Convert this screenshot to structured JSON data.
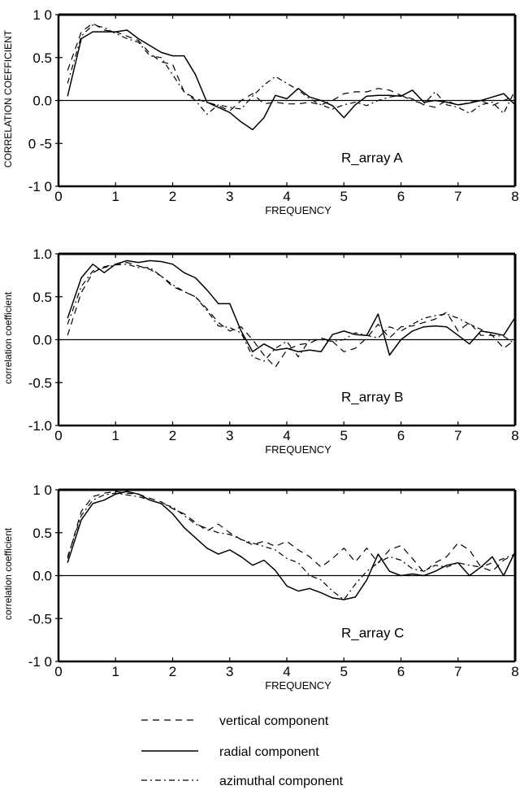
{
  "chart_data": [
    {
      "type": "line",
      "panel_label": "R_array A",
      "xlabel": "FREQUENCY",
      "ylabel": "CORRELATION COEFFICIENT",
      "xlim": [
        0,
        8
      ],
      "ylim": [
        -1,
        1
      ],
      "x_ticks": [
        0,
        1,
        2,
        3,
        4,
        5,
        6,
        7,
        8
      ],
      "x_tick_labels": [
        "0",
        "1",
        "2",
        "3",
        "4",
        "5",
        "6",
        "7",
        "8"
      ],
      "y_ticks": [
        1,
        0.5,
        0,
        -0.5,
        -1
      ],
      "y_tick_labels": [
        "1 0",
        "0.5",
        "0.0",
        "0 -5",
        "-1 0"
      ],
      "zero_line": true,
      "grid": false,
      "series": [
        {
          "name": "vertical component",
          "style": "dashed",
          "x": [
            0.16,
            0.4,
            0.6,
            0.8,
            1.0,
            1.2,
            1.4,
            1.6,
            1.8,
            2.0,
            2.2,
            2.4,
            2.6,
            2.8,
            3.0,
            3.2,
            3.4,
            3.6,
            3.8,
            4.0,
            4.2,
            4.4,
            4.6,
            4.8,
            5.0,
            5.2,
            5.4,
            5.6,
            5.8,
            6.0,
            6.2,
            6.4,
            6.6,
            6.8,
            7.0,
            7.2,
            7.4,
            7.6,
            7.8,
            8.0
          ],
          "y": [
            0.35,
            0.8,
            0.9,
            0.82,
            0.8,
            0.75,
            0.7,
            0.55,
            0.45,
            0.42,
            0.1,
            0.02,
            -0.02,
            -0.06,
            -0.12,
            0.0,
            0.08,
            -0.04,
            -0.02,
            -0.04,
            -0.04,
            -0.02,
            -0.05,
            0.0,
            0.08,
            0.1,
            0.1,
            0.14,
            0.12,
            0.06,
            0.02,
            -0.05,
            -0.08,
            0.0,
            -0.06,
            -0.02,
            0.0,
            -0.06,
            0.0,
            0.05
          ]
        },
        {
          "name": "radial component",
          "style": "solid",
          "x": [
            0.16,
            0.4,
            0.6,
            0.8,
            1.0,
            1.2,
            1.4,
            1.6,
            1.8,
            2.0,
            2.2,
            2.4,
            2.6,
            2.8,
            3.0,
            3.2,
            3.4,
            3.6,
            3.8,
            4.0,
            4.2,
            4.4,
            4.6,
            4.8,
            5.0,
            5.2,
            5.4,
            5.6,
            5.8,
            6.0,
            6.2,
            6.4,
            6.6,
            6.8,
            7.0,
            7.2,
            7.4,
            7.6,
            7.8,
            8.0
          ],
          "y": [
            0.05,
            0.72,
            0.8,
            0.8,
            0.8,
            0.82,
            0.72,
            0.64,
            0.56,
            0.52,
            0.52,
            0.3,
            -0.02,
            -0.08,
            -0.14,
            -0.25,
            -0.34,
            -0.2,
            0.06,
            0.02,
            0.14,
            0.04,
            0.0,
            -0.06,
            -0.2,
            -0.05,
            0.05,
            0.06,
            0.06,
            0.05,
            0.12,
            -0.02,
            0.0,
            -0.02,
            -0.05,
            -0.03,
            0.0,
            0.04,
            0.08,
            -0.05
          ]
        },
        {
          "name": "azimuthal component",
          "style": "dashdot",
          "x": [
            0.16,
            0.4,
            0.6,
            0.8,
            1.0,
            1.2,
            1.4,
            1.6,
            1.8,
            2.0,
            2.2,
            2.4,
            2.6,
            2.8,
            3.0,
            3.2,
            3.4,
            3.6,
            3.8,
            4.0,
            4.2,
            4.4,
            4.6,
            4.8,
            5.0,
            5.2,
            5.4,
            5.6,
            5.8,
            6.0,
            6.2,
            6.4,
            6.6,
            6.8,
            7.0,
            7.2,
            7.4,
            7.6,
            7.8,
            8.0
          ],
          "y": [
            0.2,
            0.75,
            0.88,
            0.85,
            0.78,
            0.72,
            0.68,
            0.52,
            0.5,
            0.3,
            0.1,
            0.0,
            -0.16,
            -0.05,
            -0.08,
            -0.1,
            0.05,
            0.18,
            0.28,
            0.2,
            0.12,
            0.02,
            -0.05,
            -0.1,
            -0.05,
            -0.02,
            -0.06,
            0.0,
            0.04,
            0.06,
            0.0,
            -0.04,
            0.1,
            -0.05,
            -0.08,
            -0.15,
            -0.05,
            -0.02,
            -0.15,
            0.12
          ]
        }
      ]
    },
    {
      "type": "line",
      "panel_label": "R_array B",
      "xlabel": "FREQUENCY",
      "ylabel": "correlation coefficient",
      "xlim": [
        0,
        8
      ],
      "ylim": [
        -1,
        1
      ],
      "x_ticks": [
        0,
        1,
        2,
        3,
        4,
        5,
        6,
        7,
        8
      ],
      "x_tick_labels": [
        "0",
        "1",
        "2",
        "3",
        "4",
        "5",
        "6",
        "7",
        "8"
      ],
      "y_ticks": [
        1,
        0.5,
        0,
        -0.5,
        -1
      ],
      "y_tick_labels": [
        "1.0",
        "0.5",
        "0.0",
        "-0.5",
        "-1.0"
      ],
      "zero_line": true,
      "grid": false,
      "series": [
        {
          "name": "vertical component",
          "style": "dashed",
          "x": [
            0.16,
            0.4,
            0.6,
            0.8,
            1.0,
            1.2,
            1.4,
            1.6,
            1.8,
            2.0,
            2.2,
            2.4,
            2.6,
            2.8,
            3.0,
            3.2,
            3.4,
            3.6,
            3.8,
            4.0,
            4.2,
            4.4,
            4.6,
            4.8,
            5.0,
            5.2,
            5.4,
            5.6,
            5.8,
            6.0,
            6.2,
            6.4,
            6.6,
            6.8,
            7.0,
            7.2,
            7.4,
            7.6,
            7.8,
            8.0
          ],
          "y": [
            0.05,
            0.55,
            0.78,
            0.85,
            0.88,
            0.9,
            0.86,
            0.82,
            0.74,
            0.62,
            0.56,
            0.5,
            0.36,
            0.2,
            0.1,
            0.15,
            0.0,
            -0.18,
            -0.32,
            -0.12,
            -0.06,
            -0.04,
            0.02,
            -0.02,
            -0.14,
            -0.1,
            0.02,
            0.18,
            0.02,
            0.15,
            0.16,
            0.2,
            0.24,
            0.32,
            0.1,
            0.2,
            0.05,
            0.05,
            -0.1,
            0.0
          ]
        },
        {
          "name": "radial component",
          "style": "solid",
          "x": [
            0.16,
            0.4,
            0.6,
            0.8,
            1.0,
            1.2,
            1.4,
            1.6,
            1.8,
            2.0,
            2.2,
            2.4,
            2.6,
            2.8,
            3.0,
            3.2,
            3.4,
            3.6,
            3.8,
            4.0,
            4.2,
            4.4,
            4.6,
            4.8,
            5.0,
            5.2,
            5.4,
            5.6,
            5.8,
            6.0,
            6.2,
            6.4,
            6.6,
            6.8,
            7.0,
            7.2,
            7.4,
            7.6,
            7.8,
            8.0
          ],
          "y": [
            0.25,
            0.72,
            0.88,
            0.78,
            0.88,
            0.92,
            0.9,
            0.92,
            0.91,
            0.88,
            0.78,
            0.72,
            0.58,
            0.42,
            0.42,
            0.1,
            -0.14,
            -0.05,
            -0.12,
            -0.1,
            -0.14,
            -0.12,
            -0.14,
            0.06,
            0.1,
            0.06,
            0.05,
            0.3,
            -0.18,
            0.0,
            0.1,
            0.15,
            0.16,
            0.15,
            0.05,
            -0.05,
            0.1,
            0.08,
            0.05,
            0.26
          ]
        },
        {
          "name": "azimuthal component",
          "style": "dashdot",
          "x": [
            0.16,
            0.4,
            0.6,
            0.8,
            1.0,
            1.2,
            1.4,
            1.6,
            1.8,
            2.0,
            2.2,
            2.4,
            2.6,
            2.8,
            3.0,
            3.2,
            3.4,
            3.6,
            3.8,
            4.0,
            4.2,
            4.4,
            4.6,
            4.8,
            5.0,
            5.2,
            5.4,
            5.6,
            5.8,
            6.0,
            6.2,
            6.4,
            6.6,
            6.8,
            7.0,
            7.2,
            7.4,
            7.6,
            7.8,
            8.0
          ],
          "y": [
            0.18,
            0.62,
            0.8,
            0.84,
            0.87,
            0.88,
            0.84,
            0.84,
            0.74,
            0.64,
            0.56,
            0.5,
            0.34,
            0.16,
            0.14,
            0.08,
            -0.2,
            -0.25,
            -0.1,
            -0.02,
            -0.2,
            0.0,
            0.0,
            -0.02,
            0.0,
            0.08,
            0.05,
            0.02,
            0.15,
            0.1,
            0.18,
            0.25,
            0.28,
            0.3,
            0.25,
            0.18,
            0.12,
            0.05,
            0.04,
            -0.05
          ]
        }
      ]
    },
    {
      "type": "line",
      "panel_label": "R_array C",
      "xlabel": "FREQUENCY",
      "ylabel": "correlation coefficient",
      "xlim": [
        0,
        8
      ],
      "ylim": [
        -1,
        1
      ],
      "x_ticks": [
        0,
        1,
        2,
        3,
        4,
        5,
        6,
        7,
        8
      ],
      "x_tick_labels": [
        "0",
        "1",
        "2",
        "3",
        "4",
        "5",
        "6",
        "7",
        "8"
      ],
      "y_ticks": [
        1,
        0.5,
        0,
        -0.5,
        -1
      ],
      "y_tick_labels": [
        "1 0",
        "0.5",
        "0.0",
        "-0.5",
        "-1 0"
      ],
      "zero_line": true,
      "grid": false,
      "series": [
        {
          "name": "vertical component",
          "style": "dashed",
          "x": [
            0.16,
            0.4,
            0.6,
            0.8,
            1.0,
            1.2,
            1.4,
            1.6,
            1.8,
            2.0,
            2.2,
            2.4,
            2.6,
            2.8,
            3.0,
            3.2,
            3.4,
            3.6,
            3.8,
            4.0,
            4.2,
            4.4,
            4.6,
            4.8,
            5.0,
            5.2,
            5.4,
            5.6,
            5.8,
            6.0,
            6.2,
            6.4,
            6.6,
            6.8,
            7.0,
            7.2,
            7.4,
            7.6,
            7.8,
            8.0
          ],
          "y": [
            0.2,
            0.75,
            0.92,
            0.96,
            0.98,
            0.96,
            0.95,
            0.9,
            0.86,
            0.78,
            0.72,
            0.62,
            0.52,
            0.6,
            0.5,
            0.42,
            0.36,
            0.4,
            0.34,
            0.4,
            0.3,
            0.22,
            0.1,
            0.2,
            0.32,
            0.16,
            0.32,
            0.15,
            0.3,
            0.35,
            0.2,
            0.04,
            0.15,
            0.22,
            0.38,
            0.3,
            0.1,
            0.05,
            0.18,
            0.25
          ]
        },
        {
          "name": "radial component",
          "style": "solid",
          "x": [
            0.16,
            0.4,
            0.6,
            0.8,
            1.0,
            1.2,
            1.4,
            1.6,
            1.8,
            2.0,
            2.2,
            2.4,
            2.6,
            2.8,
            3.0,
            3.2,
            3.4,
            3.6,
            3.8,
            4.0,
            4.2,
            4.4,
            4.6,
            4.8,
            5.0,
            5.2,
            5.4,
            5.6,
            5.8,
            6.0,
            6.2,
            6.4,
            6.6,
            6.8,
            7.0,
            7.2,
            7.4,
            7.6,
            7.8,
            8.0
          ],
          "y": [
            0.15,
            0.65,
            0.84,
            0.88,
            0.95,
            0.98,
            0.95,
            0.88,
            0.84,
            0.72,
            0.56,
            0.44,
            0.32,
            0.25,
            0.3,
            0.22,
            0.12,
            0.18,
            0.06,
            -0.12,
            -0.18,
            -0.15,
            -0.2,
            -0.26,
            -0.28,
            -0.25,
            -0.05,
            0.25,
            0.05,
            0.0,
            0.02,
            0.0,
            0.05,
            0.12,
            0.15,
            0.0,
            0.1,
            0.22,
            0.0,
            0.28
          ]
        },
        {
          "name": "azimuthal component",
          "style": "dashdot",
          "x": [
            0.16,
            0.4,
            0.6,
            0.8,
            1.0,
            1.2,
            1.4,
            1.6,
            1.8,
            2.0,
            2.2,
            2.4,
            2.6,
            2.8,
            3.0,
            3.2,
            3.4,
            3.6,
            3.8,
            4.0,
            4.2,
            4.4,
            4.6,
            4.8,
            5.0,
            5.2,
            5.4,
            5.6,
            5.8,
            6.0,
            6.2,
            6.4,
            6.6,
            6.8,
            7.0,
            7.2,
            7.4,
            7.6,
            7.8,
            8.0
          ],
          "y": [
            0.22,
            0.7,
            0.88,
            0.94,
            0.96,
            0.94,
            0.92,
            0.88,
            0.84,
            0.8,
            0.7,
            0.6,
            0.55,
            0.5,
            0.48,
            0.42,
            0.38,
            0.34,
            0.3,
            0.2,
            0.15,
            0.0,
            -0.05,
            -0.18,
            -0.28,
            -0.1,
            0.05,
            0.15,
            0.22,
            0.18,
            0.08,
            0.05,
            0.12,
            0.1,
            0.15,
            0.12,
            0.1,
            0.15,
            0.2,
            0.25
          ]
        }
      ]
    }
  ],
  "legend": {
    "items": [
      {
        "label": "vertical component",
        "style": "dashed"
      },
      {
        "label": "radial component",
        "style": "solid"
      },
      {
        "label": "azimuthal component",
        "style": "dashdot"
      }
    ]
  }
}
